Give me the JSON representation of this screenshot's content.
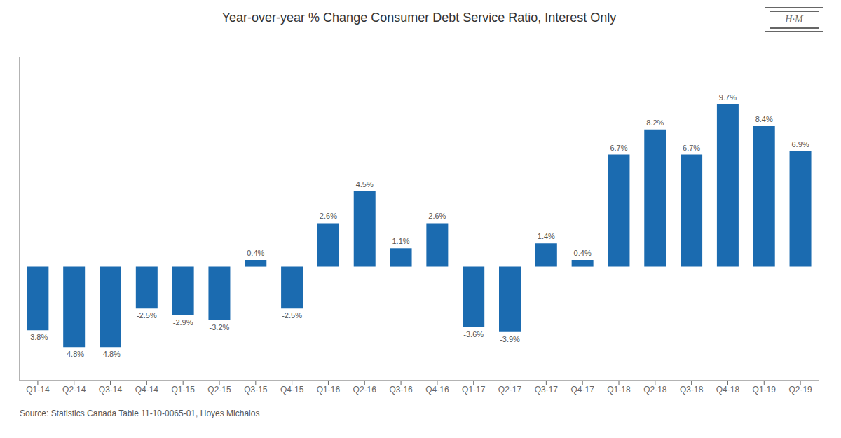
{
  "chart_data": {
    "type": "bar",
    "title": "Year-over-year % Change Consumer Debt Service Ratio, Interest Only",
    "categories": [
      "Q1-14",
      "Q2-14",
      "Q3-14",
      "Q4-14",
      "Q1-15",
      "Q2-15",
      "Q3-15",
      "Q4-15",
      "Q1-16",
      "Q2-16",
      "Q3-16",
      "Q4-16",
      "Q1-17",
      "Q2-17",
      "Q3-17",
      "Q4-17",
      "Q1-18",
      "Q2-18",
      "Q3-18",
      "Q4-18",
      "Q1-19",
      "Q2-19"
    ],
    "values": [
      -3.8,
      -4.8,
      -4.8,
      -2.5,
      -2.9,
      -3.2,
      0.4,
      -2.5,
      2.6,
      4.5,
      1.1,
      2.6,
      -3.6,
      -3.9,
      1.4,
      0.4,
      6.7,
      8.2,
      6.7,
      9.7,
      8.4,
      6.9
    ],
    "value_labels": [
      "-3.8%",
      "-4.8%",
      "-4.8%",
      "-2.5%",
      "-2.9%",
      "-3.2%",
      "0.4%",
      "-2.5%",
      "2.6%",
      "4.5%",
      "1.1%",
      "2.6%",
      "-3.6%",
      "-3.9%",
      "1.4%",
      "0.4%",
      "6.7%",
      "8.2%",
      "6.7%",
      "9.7%",
      "8.4%",
      "6.9%"
    ],
    "color": "#1B6BB0",
    "ylim": [
      -6.8,
      12.5
    ],
    "grid": false,
    "data_labels": true,
    "tick_labels": "x",
    "annotations": [
      "Source: Statistics Canada Table 11-10-0065-01, Hoyes Michalos",
      "H·M"
    ]
  }
}
